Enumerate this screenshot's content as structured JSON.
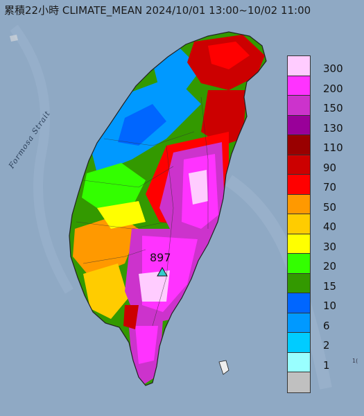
{
  "title": "累積22小時 CLIMATE_MEAN 2024/10/01 13:00~10/02 11:00",
  "strait_label": "Formosa Strait",
  "max_value": "897",
  "max_marker": "triangle-marker",
  "edge_label": "1(",
  "legend": [
    {
      "label": "300",
      "color": "#ffccff"
    },
    {
      "label": "200",
      "color": "#ff33ff"
    },
    {
      "label": "150",
      "color": "#cc33cc"
    },
    {
      "label": "130",
      "color": "#990099"
    },
    {
      "label": "110",
      "color": "#990000"
    },
    {
      "label": "90",
      "color": "#cc0000"
    },
    {
      "label": "70",
      "color": "#ff0000"
    },
    {
      "label": "50",
      "color": "#ff9900"
    },
    {
      "label": "40",
      "color": "#ffcc00"
    },
    {
      "label": "30",
      "color": "#ffff00"
    },
    {
      "label": "20",
      "color": "#33ff00"
    },
    {
      "label": "15",
      "color": "#339900"
    },
    {
      "label": "10",
      "color": "#0066ff"
    },
    {
      "label": "6",
      "color": "#0099ff"
    },
    {
      "label": "2",
      "color": "#00ccff"
    },
    {
      "label": "1",
      "color": "#99ffff"
    },
    {
      "label": "",
      "color": "#c0c0c0"
    }
  ],
  "colors": {
    "sea": "#8fa9c4",
    "marker": "#33cccc"
  }
}
